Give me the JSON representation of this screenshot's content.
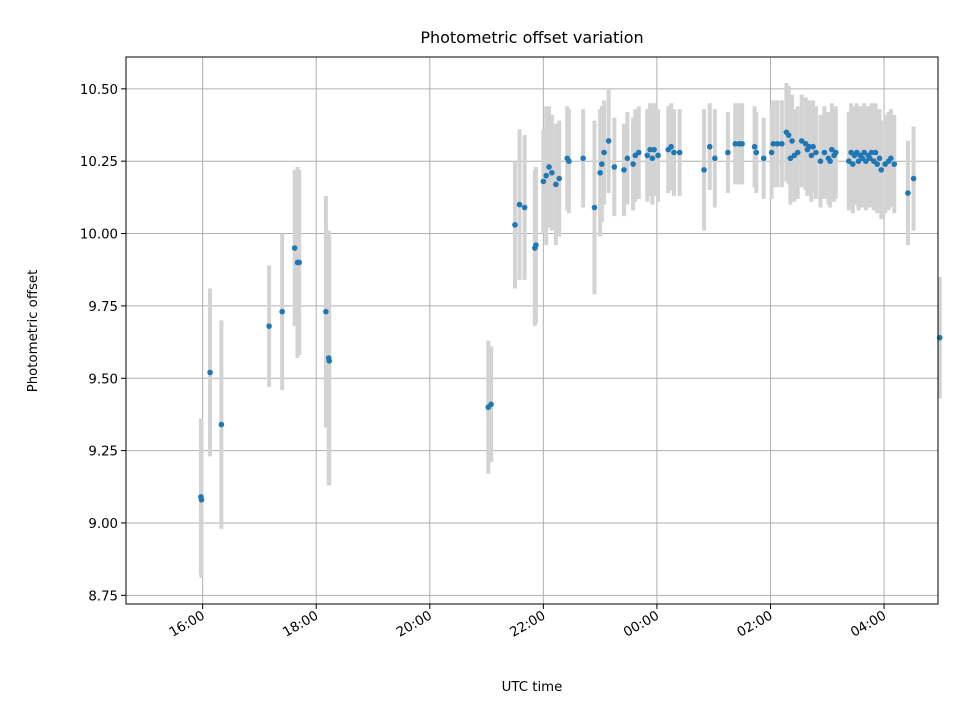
{
  "chart_data": {
    "type": "scatter",
    "title": "Photometric offset variation",
    "xlabel": "UTC time",
    "ylabel": "Photometric offset",
    "x_axis": {
      "kind": "time",
      "range_hours": [
        14.65,
        28.95
      ],
      "ticks": [
        {
          "value": 16,
          "label": "16:00"
        },
        {
          "value": 18,
          "label": "18:00"
        },
        {
          "value": 20,
          "label": "20:00"
        },
        {
          "value": 22,
          "label": "22:00"
        },
        {
          "value": 24,
          "label": "00:00"
        },
        {
          "value": 26,
          "label": "02:00"
        },
        {
          "value": 28,
          "label": "04:00"
        }
      ]
    },
    "ylim": [
      8.72,
      10.61
    ],
    "y_ticks": [
      8.75,
      9.0,
      9.25,
      9.5,
      9.75,
      10.0,
      10.25,
      10.5
    ],
    "y_tick_labels": [
      "8.75",
      "9.00",
      "9.25",
      "9.50",
      "9.75",
      "10.00",
      "10.25",
      "10.50"
    ],
    "grid": true,
    "colors": {
      "point": "#1f77b4",
      "errorbar": "#d3d3d3"
    },
    "series": [
      {
        "points": [
          [
            15.97,
            9.09,
            0.27
          ],
          [
            15.98,
            9.08,
            0.27
          ],
          [
            16.13,
            9.52,
            0.29
          ],
          [
            16.33,
            9.34,
            0.36
          ],
          [
            17.17,
            9.68,
            0.21
          ],
          [
            17.4,
            9.73,
            0.27
          ],
          [
            17.62,
            9.95,
            0.27
          ],
          [
            17.67,
            9.9,
            0.33
          ],
          [
            17.7,
            9.9,
            0.32
          ],
          [
            18.17,
            9.73,
            0.4
          ],
          [
            18.22,
            9.57,
            0.44
          ],
          [
            18.23,
            9.56,
            0.43
          ],
          [
            21.03,
            9.4,
            0.23
          ],
          [
            21.08,
            9.41,
            0.2
          ],
          [
            21.5,
            10.03,
            0.22
          ],
          [
            21.58,
            10.1,
            0.26
          ],
          [
            21.67,
            10.09,
            0.25
          ],
          [
            21.85,
            9.95,
            0.27
          ],
          [
            21.87,
            9.96,
            0.27
          ],
          [
            22.0,
            10.18,
            0.18
          ],
          [
            22.05,
            10.2,
            0.24
          ],
          [
            22.1,
            10.23,
            0.21
          ],
          [
            22.15,
            10.21,
            0.2
          ],
          [
            22.22,
            10.17,
            0.21
          ],
          [
            22.28,
            10.19,
            0.2
          ],
          [
            22.42,
            10.26,
            0.18
          ],
          [
            22.45,
            10.25,
            0.18
          ],
          [
            22.7,
            10.26,
            0.17
          ],
          [
            22.9,
            10.09,
            0.3
          ],
          [
            23.0,
            10.21,
            0.22
          ],
          [
            23.03,
            10.24,
            0.2
          ],
          [
            23.07,
            10.28,
            0.18
          ],
          [
            23.15,
            10.32,
            0.18
          ],
          [
            23.25,
            10.23,
            0.17
          ],
          [
            23.42,
            10.22,
            0.16
          ],
          [
            23.48,
            10.26,
            0.16
          ],
          [
            23.58,
            10.24,
            0.16
          ],
          [
            23.62,
            10.27,
            0.16
          ],
          [
            23.68,
            10.28,
            0.16
          ],
          [
            23.83,
            10.27,
            0.16
          ],
          [
            23.88,
            10.29,
            0.16
          ],
          [
            23.92,
            10.26,
            0.16
          ],
          [
            23.95,
            10.29,
            0.16
          ],
          [
            24.02,
            10.27,
            0.16
          ],
          [
            24.2,
            10.29,
            0.15
          ],
          [
            24.25,
            10.3,
            0.15
          ],
          [
            24.3,
            10.28,
            0.15
          ],
          [
            24.4,
            10.28,
            0.15
          ],
          [
            24.83,
            10.22,
            0.21
          ],
          [
            24.93,
            10.3,
            0.15
          ],
          [
            25.02,
            10.26,
            0.17
          ],
          [
            25.25,
            10.28,
            0.14
          ],
          [
            25.38,
            10.31,
            0.14
          ],
          [
            25.45,
            10.31,
            0.14
          ],
          [
            25.5,
            10.31,
            0.14
          ],
          [
            25.72,
            10.3,
            0.14
          ],
          [
            25.75,
            10.28,
            0.14
          ],
          [
            25.88,
            10.26,
            0.14
          ],
          [
            26.02,
            10.28,
            0.16
          ],
          [
            26.05,
            10.31,
            0.15
          ],
          [
            26.12,
            10.31,
            0.15
          ],
          [
            26.2,
            10.31,
            0.15
          ],
          [
            26.28,
            10.35,
            0.17
          ],
          [
            26.32,
            10.34,
            0.17
          ],
          [
            26.35,
            10.26,
            0.16
          ],
          [
            26.38,
            10.32,
            0.16
          ],
          [
            26.42,
            10.27,
            0.16
          ],
          [
            26.48,
            10.28,
            0.16
          ],
          [
            26.55,
            10.32,
            0.16
          ],
          [
            26.62,
            10.31,
            0.16
          ],
          [
            26.65,
            10.29,
            0.16
          ],
          [
            26.68,
            10.3,
            0.16
          ],
          [
            26.72,
            10.27,
            0.16
          ],
          [
            26.75,
            10.3,
            0.16
          ],
          [
            26.8,
            10.28,
            0.16
          ],
          [
            26.88,
            10.25,
            0.16
          ],
          [
            26.95,
            10.28,
            0.16
          ],
          [
            27.02,
            10.26,
            0.16
          ],
          [
            27.05,
            10.25,
            0.16
          ],
          [
            27.08,
            10.29,
            0.16
          ],
          [
            27.12,
            10.27,
            0.16
          ],
          [
            27.15,
            10.28,
            0.16
          ],
          [
            27.38,
            10.25,
            0.17
          ],
          [
            27.42,
            10.28,
            0.17
          ],
          [
            27.45,
            10.24,
            0.17
          ],
          [
            27.48,
            10.27,
            0.17
          ],
          [
            27.52,
            10.28,
            0.17
          ],
          [
            27.55,
            10.25,
            0.17
          ],
          [
            27.58,
            10.27,
            0.17
          ],
          [
            27.62,
            10.26,
            0.17
          ],
          [
            27.65,
            10.28,
            0.17
          ],
          [
            27.68,
            10.25,
            0.17
          ],
          [
            27.72,
            10.27,
            0.17
          ],
          [
            27.75,
            10.26,
            0.17
          ],
          [
            27.78,
            10.28,
            0.17
          ],
          [
            27.82,
            10.25,
            0.17
          ],
          [
            27.85,
            10.28,
            0.17
          ],
          [
            27.88,
            10.24,
            0.17
          ],
          [
            27.92,
            10.26,
            0.17
          ],
          [
            27.95,
            10.22,
            0.17
          ],
          [
            28.02,
            10.24,
            0.17
          ],
          [
            28.08,
            10.25,
            0.17
          ],
          [
            28.12,
            10.26,
            0.17
          ],
          [
            28.18,
            10.24,
            0.17
          ],
          [
            28.42,
            10.14,
            0.18
          ],
          [
            28.52,
            10.19,
            0.18
          ],
          [
            28.98,
            9.64,
            0.21
          ]
        ]
      }
    ]
  }
}
